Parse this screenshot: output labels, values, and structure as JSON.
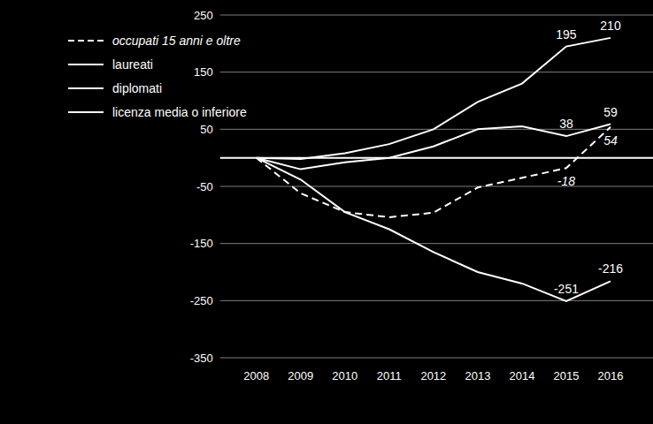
{
  "chart_data": {
    "type": "line",
    "categories": [
      "2008",
      "2009",
      "2010",
      "2011",
      "2012",
      "2013",
      "2014",
      "2015",
      "2016"
    ],
    "series": [
      {
        "name": "occupati 15 anni e oltre",
        "color": "#ffffff",
        "line_style": "dashed",
        "values": [
          0,
          -62,
          -95,
          -104,
          -96,
          -52,
          -35,
          -18,
          54
        ],
        "value_labels": [
          null,
          null,
          null,
          null,
          null,
          null,
          null,
          "-18",
          "54"
        ]
      },
      {
        "name": "laureati",
        "color": "#ffffff",
        "line_style": "solid",
        "values": [
          0,
          -2,
          8,
          24,
          50,
          98,
          130,
          195,
          210
        ],
        "value_labels": [
          null,
          null,
          null,
          null,
          null,
          null,
          null,
          "195",
          "210"
        ]
      },
      {
        "name": "diplomati",
        "color": "#ffffff",
        "line_style": "solid",
        "values": [
          0,
          -20,
          -8,
          0,
          20,
          50,
          55,
          38,
          59
        ],
        "value_labels": [
          null,
          null,
          null,
          null,
          null,
          null,
          null,
          "38",
          "59"
        ]
      },
      {
        "name": "licenza media o inferiore",
        "color": "#ffffff",
        "line_style": "solid",
        "values": [
          0,
          -38,
          -95,
          -125,
          -165,
          -200,
          -220,
          -251,
          -216
        ],
        "value_labels": [
          null,
          null,
          null,
          null,
          null,
          null,
          null,
          "-251",
          "-216"
        ]
      }
    ],
    "ylim": [
      -350,
      250
    ],
    "yticks": [
      -350,
      -250,
      -150,
      -50,
      50,
      150,
      250
    ],
    "grid": true,
    "legend": "upper left",
    "data_labels": true
  }
}
